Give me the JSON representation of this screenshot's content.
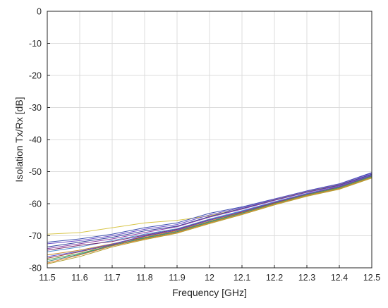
{
  "chart_data": {
    "type": "line",
    "title": "",
    "xlabel": "Frequency [GHz]",
    "ylabel": "Isolation Tx/Rx [dB]",
    "xlim": [
      11.5,
      12.5
    ],
    "ylim": [
      -80,
      0
    ],
    "xticks": [
      11.5,
      11.6,
      11.7,
      11.8,
      11.9,
      12,
      12.1,
      12.2,
      12.3,
      12.4,
      12.5
    ],
    "xtick_labels": [
      "11.5",
      "11.6",
      "11.7",
      "11.8",
      "11.9",
      "12",
      "12.1",
      "12.2",
      "12.3",
      "12.4",
      "12.5"
    ],
    "yticks": [
      0,
      -10,
      -20,
      -30,
      -40,
      -50,
      -60,
      -70,
      -80
    ],
    "ytick_labels": [
      "0",
      "-10",
      "-20",
      "-30",
      "-40",
      "-50",
      "-60",
      "-70",
      "-80"
    ],
    "grid": true,
    "legend": "none",
    "x": [
      11.5,
      11.6,
      11.7,
      11.8,
      11.9,
      12.0,
      12.1,
      12.2,
      12.3,
      12.4,
      12.5
    ],
    "series": [
      {
        "color": "#d8c64a",
        "values": [
          -69.5,
          -69.0,
          -67.5,
          -66.0,
          -65.2,
          -63.8,
          -61.5,
          -58.8,
          -56.2,
          -54.0,
          -51.0
        ]
      },
      {
        "color": "#3d4fb0",
        "values": [
          -72.0,
          -71.0,
          -69.5,
          -67.5,
          -66.0,
          -63.0,
          -61.0,
          -58.5,
          -56.0,
          -53.8,
          -50.3
        ]
      },
      {
        "color": "#6a4fc8",
        "values": [
          -72.5,
          -71.5,
          -70.0,
          -68.0,
          -66.5,
          -63.5,
          -61.2,
          -58.6,
          -56.1,
          -53.9,
          -50.5
        ]
      },
      {
        "color": "#2f3f9a",
        "values": [
          -73.5,
          -72.0,
          -70.5,
          -68.5,
          -67.0,
          -64.0,
          -61.5,
          -58.9,
          -56.4,
          -54.2,
          -50.8
        ]
      },
      {
        "color": "#8a3fa8",
        "values": [
          -74.0,
          -72.5,
          -71.0,
          -69.0,
          -67.2,
          -64.2,
          -61.7,
          -59.0,
          -56.5,
          -54.4,
          -51.0
        ]
      },
      {
        "color": "#4f8fd0",
        "values": [
          -75.0,
          -73.5,
          -71.5,
          -69.5,
          -67.8,
          -64.8,
          -62.2,
          -59.4,
          -56.8,
          -54.6,
          -51.2
        ]
      },
      {
        "color": "#7a2a6a",
        "values": [
          -74.5,
          -73.0,
          -71.8,
          -69.8,
          -68.0,
          -65.0,
          -62.5,
          -59.6,
          -57.0,
          -54.8,
          -51.3
        ]
      },
      {
        "color": "#c98a2a",
        "values": [
          -76.0,
          -74.5,
          -72.5,
          -70.5,
          -68.5,
          -65.5,
          -62.8,
          -59.9,
          -57.2,
          -55.0,
          -51.5
        ]
      },
      {
        "color": "#5aa64a",
        "values": [
          -77.5,
          -75.5,
          -73.0,
          -70.8,
          -68.8,
          -65.8,
          -63.0,
          -60.0,
          -57.3,
          -55.1,
          -51.6
        ]
      },
      {
        "color": "#e07a2a",
        "values": [
          -78.5,
          -76.0,
          -73.2,
          -71.0,
          -69.0,
          -66.0,
          -63.2,
          -60.2,
          -57.5,
          -55.3,
          -51.8
        ]
      },
      {
        "color": "#3a8a8a",
        "values": [
          -78.0,
          -75.8,
          -73.0,
          -70.6,
          -68.7,
          -65.6,
          -62.9,
          -59.8,
          -57.1,
          -54.9,
          -51.4
        ]
      },
      {
        "color": "#a04040",
        "values": [
          -77.0,
          -75.0,
          -72.8,
          -70.2,
          -68.3,
          -65.2,
          -62.6,
          -59.7,
          -57.0,
          -54.7,
          -51.2
        ]
      },
      {
        "color": "#5a5ad8",
        "values": [
          -76.5,
          -74.8,
          -72.6,
          -70.0,
          -68.2,
          -65.1,
          -62.4,
          -59.5,
          -56.9,
          -54.6,
          -51.1
        ]
      },
      {
        "color": "#b0a030",
        "values": [
          -78.8,
          -76.5,
          -73.5,
          -71.2,
          -69.2,
          -66.2,
          -63.4,
          -60.4,
          -57.7,
          -55.5,
          -52.0
        ]
      }
    ]
  }
}
